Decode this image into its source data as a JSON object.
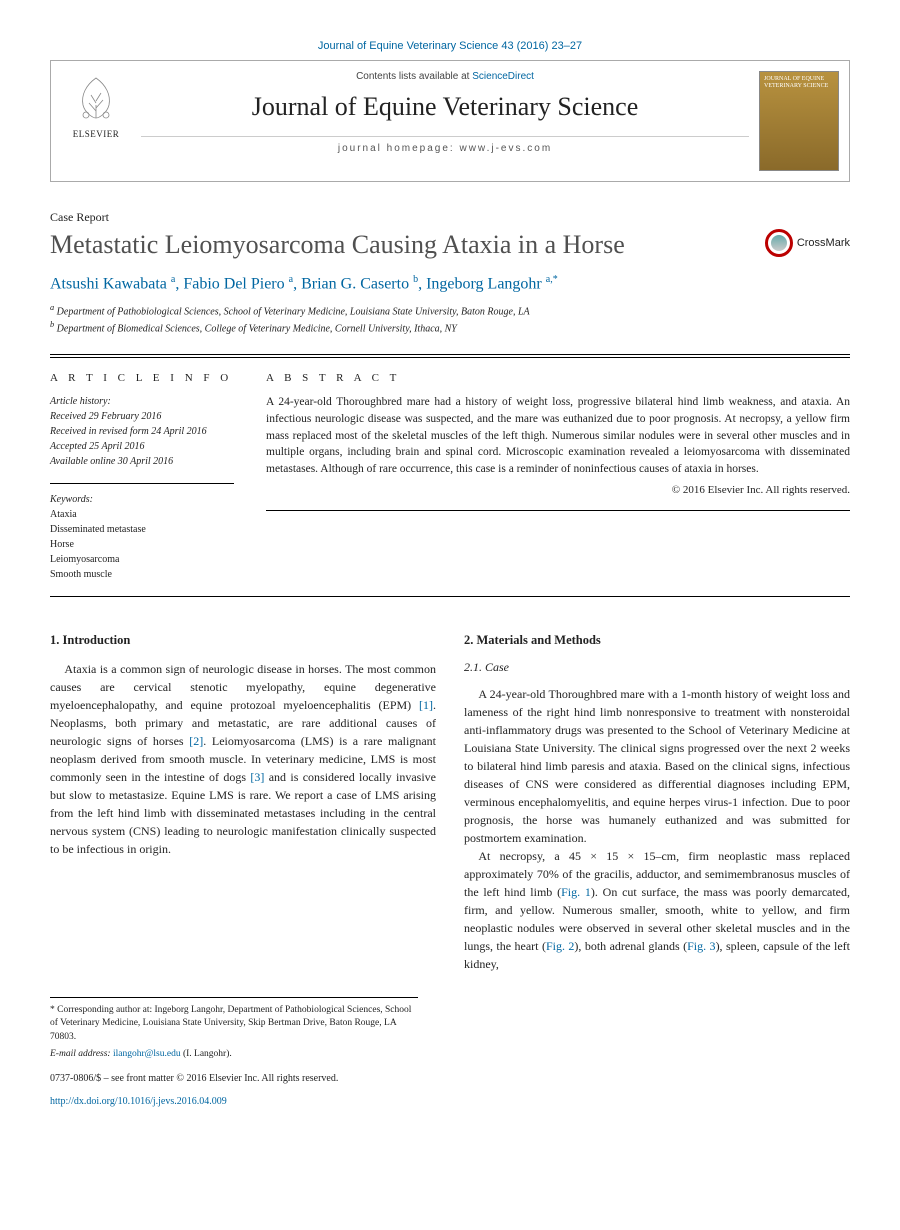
{
  "citation": "Journal of Equine Veterinary Science 43 (2016) 23–27",
  "header": {
    "contents_prefix": "Contents lists available at ",
    "contents_link": "ScienceDirect",
    "journal_title": "Journal of Equine Veterinary Science",
    "homepage_prefix": "journal homepage: ",
    "homepage_url": "www.j-evs.com",
    "publisher_name": "ELSEVIER",
    "cover_label": "JOURNAL OF EQUINE VETERINARY SCIENCE"
  },
  "article_type": "Case Report",
  "title": "Metastatic Leiomyosarcoma Causing Ataxia in a Horse",
  "crossmark_label": "CrossMark",
  "authors_html": "Atsushi Kawabata <sup>a</sup>, Fabio Del Piero <sup>a</sup>, Brian G. Caserto <sup>b</sup>, Ingeborg Langohr <sup>a,*</sup>",
  "affiliations": {
    "a": "Department of Pathobiological Sciences, School of Veterinary Medicine, Louisiana State University, Baton Rouge, LA",
    "b": "Department of Biomedical Sciences, College of Veterinary Medicine, Cornell University, Ithaca, NY"
  },
  "article_info": {
    "head": "A R T I C L E   I N F O",
    "history_head": "Article history:",
    "received": "Received 29 February 2016",
    "revised": "Received in revised form 24 April 2016",
    "accepted": "Accepted 25 April 2016",
    "online": "Available online 30 April 2016",
    "keywords_head": "Keywords:",
    "keywords": [
      "Ataxia",
      "Disseminated metastase",
      "Horse",
      "Leiomyosarcoma",
      "Smooth muscle"
    ]
  },
  "abstract": {
    "head": "A B S T R A C T",
    "text": "A 24-year-old Thoroughbred mare had a history of weight loss, progressive bilateral hind limb weakness, and ataxia. An infectious neurologic disease was suspected, and the mare was euthanized due to poor prognosis. At necropsy, a yellow firm mass replaced most of the skeletal muscles of the left thigh. Numerous similar nodules were in several other muscles and in multiple organs, including brain and spinal cord. Microscopic examination revealed a leiomyosarcoma with disseminated metastases. Although of rare occurrence, this case is a reminder of noninfectious causes of ataxia in horses.",
    "copyright": "© 2016 Elsevier Inc. All rights reserved."
  },
  "sections": {
    "intro_head": "1. Introduction",
    "intro_text": "Ataxia is a common sign of neurologic disease in horses. The most common causes are cervical stenotic myelopathy, equine degenerative myeloencephalopathy, and equine protozoal myeloencephalitis (EPM) [1]. Neoplasms, both primary and metastatic, are rare additional causes of neurologic signs of horses [2]. Leiomyosarcoma (LMS) is a rare malignant neoplasm derived from smooth muscle. In veterinary medicine, LMS is most commonly seen in the intestine of dogs [3] and is considered locally invasive but slow to metastasize. Equine LMS is rare. We report a case of LMS arising from the left hind limb with disseminated metastases including in the central nervous system (CNS) leading to neurologic manifestation clinically suspected to be infectious in origin.",
    "mm_head": "2. Materials and Methods",
    "case_head": "2.1. Case",
    "case_p1": "A 24-year-old Thoroughbred mare with a 1-month history of weight loss and lameness of the right hind limb nonresponsive to treatment with nonsteroidal anti-inflammatory drugs was presented to the School of Veterinary Medicine at Louisiana State University. The clinical signs progressed over the next 2 weeks to bilateral hind limb paresis and ataxia. Based on the clinical signs, infectious diseases of CNS were considered as differential diagnoses including EPM, verminous encephalomyelitis, and equine herpes virus-1 infection. Due to poor prognosis, the horse was humanely euthanized and was submitted for postmortem examination.",
    "case_p2": "At necropsy, a 45 × 15 × 15–cm, firm neoplastic mass replaced approximately 70% of the gracilis, adductor, and semimembranosus muscles of the left hind limb (Fig. 1). On cut surface, the mass was poorly demarcated, firm, and yellow. Numerous smaller, smooth, white to yellow, and firm neoplastic nodules were observed in several other skeletal muscles and in the lungs, the heart (Fig. 2), both adrenal glands (Fig. 3), spleen, capsule of the left kidney,"
  },
  "footnotes": {
    "corr": "* Corresponding author at: Ingeborg Langohr, Department of Pathobiological Sciences, School of Veterinary Medicine, Louisiana State University, Skip Bertman Drive, Baton Rouge, LA 70803.",
    "email_label": "E-mail address:",
    "email": "ilangohr@lsu.edu",
    "email_suffix": "(I. Langohr).",
    "front_matter": "0737-0806/$ – see front matter © 2016 Elsevier Inc. All rights reserved.",
    "doi": "http://dx.doi.org/10.1016/j.jevs.2016.04.009"
  },
  "colors": {
    "link": "#0066a1",
    "text": "#222222",
    "title_grey": "#505050",
    "cover_top": "#b8923f",
    "cover_bottom": "#8a6a2a"
  }
}
